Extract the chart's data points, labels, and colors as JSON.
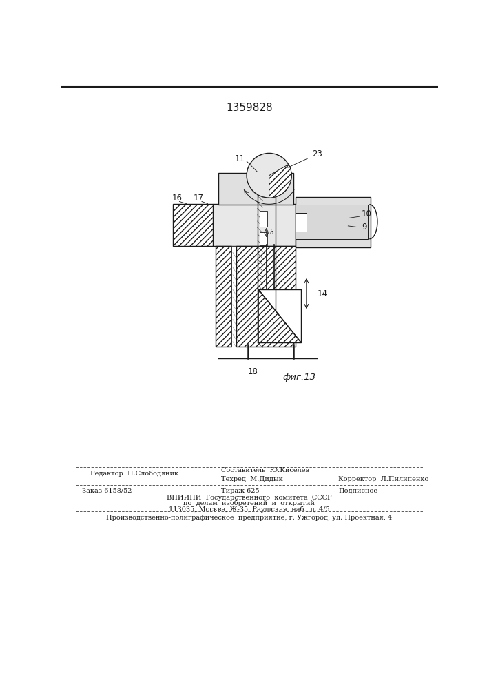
{
  "patent_number": "1359828",
  "fig_label": "фиг.13",
  "bg_color": "#ffffff",
  "line_color": "#1a1a1a",
  "editor_line": "Редактор  Н.Слободяник",
  "composer_line": "Составитель  Ю.Киселев",
  "techred_line": "Техред  М.Дидык",
  "corrector_line": "Корректор  Л.Пилипенко",
  "order_line": "Заказ 6158/52",
  "tirazh_line": "Тираж 625",
  "podpisnoe_line": "Подписное",
  "vnipi_line1": "ВНИИПИ  Государственного  комитета  СССР",
  "vnipi_line2": "по  делам  изобретений  и  открытий",
  "vnipi_line3": "113035, Москва, Ж-35, Раушская  наб., д. 4/5",
  "production_line": "Производственно-полиграфическое  предприятие, г. Ужгород, ул. Проектная, 4"
}
